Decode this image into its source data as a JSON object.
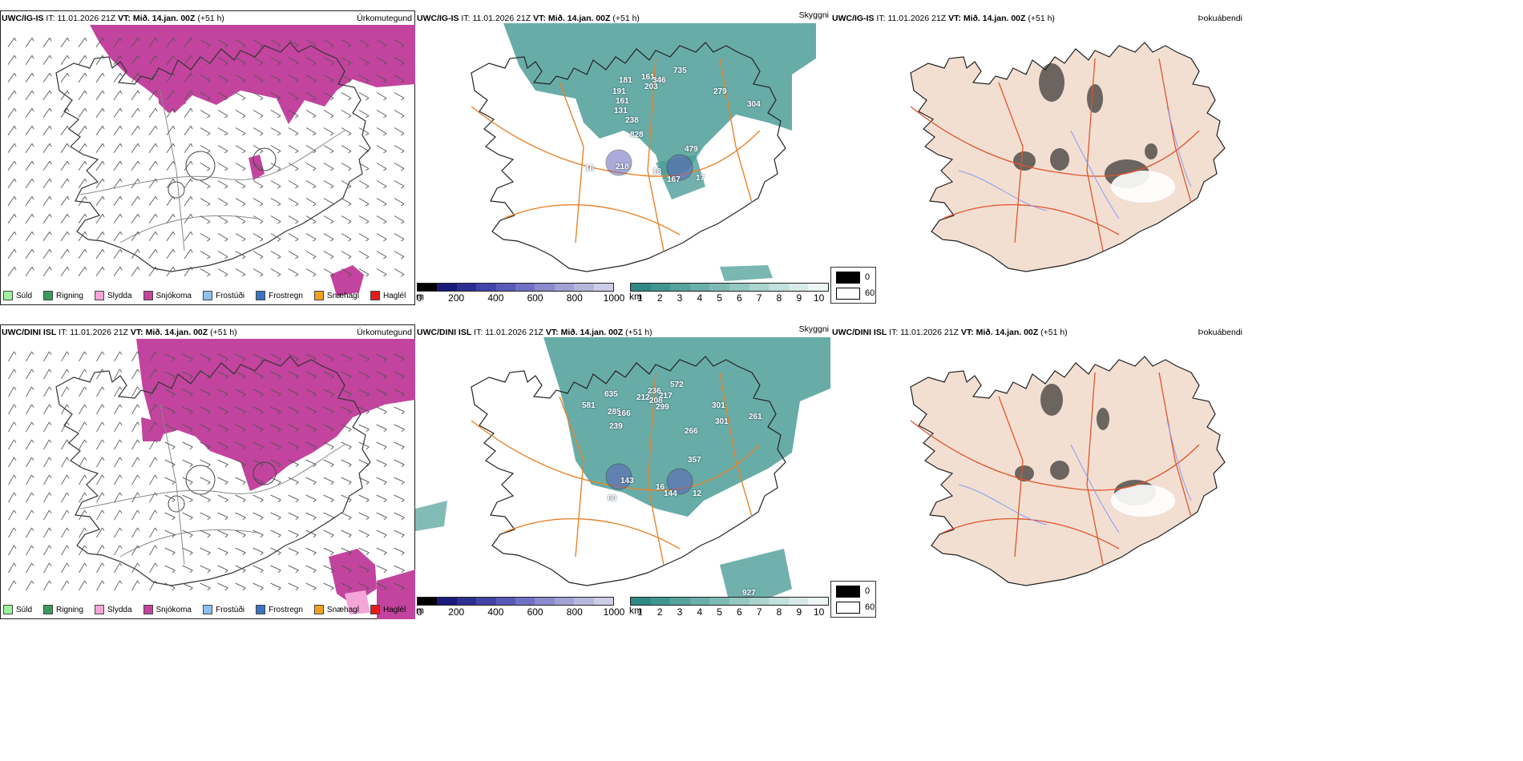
{
  "rows": [
    {
      "model": "UWC/IG-IS",
      "it_label": "IT:",
      "it_value": "11.01.2026 21Z",
      "vt_label": "VT:",
      "vt_value": "Mið. 14.jan. 00Z",
      "lead": "(+51 h)",
      "visibility_labels": [
        "735",
        "161",
        "181",
        "203",
        "346",
        "191",
        "161",
        "131",
        "238",
        "828",
        "279",
        "304",
        "479",
        "218",
        "167",
        "17",
        "16",
        "18"
      ]
    },
    {
      "model": "UWC/DINI ISL",
      "it_label": "IT:",
      "it_value": "11.01.2026 21Z",
      "vt_label": "VT:",
      "vt_value": "Mið. 14.jan. 00Z",
      "lead": "(+51 h)",
      "visibility_labels": [
        "572",
        "635",
        "212",
        "236",
        "581",
        "285",
        "208",
        "217",
        "299",
        "166",
        "239",
        "301",
        "301",
        "261",
        "266",
        "357",
        "143",
        "144",
        "16",
        "60",
        "12",
        "927"
      ]
    }
  ],
  "panel_titles": {
    "precip": "Úrkomutegund",
    "visibility": "Skyggni",
    "fog": "Þokuábendi"
  },
  "precip_legend": [
    {
      "label": "Súld",
      "color": "#9ef29e"
    },
    {
      "label": "Rigning",
      "color": "#3a9a5e"
    },
    {
      "label": "Slydda",
      "color": "#f4a6d8"
    },
    {
      "label": "Snjókoma",
      "color": "#c2449e"
    },
    {
      "label": "Frostúði",
      "color": "#8fc0ef"
    },
    {
      "label": "Frostregn",
      "color": "#3b73c0"
    },
    {
      "label": "Snæhagl",
      "color": "#f0a020"
    },
    {
      "label": "Haglél",
      "color": "#e81a1a"
    }
  ],
  "cloud_base_bar": {
    "unit": "m",
    "ticks": [
      "0",
      "200",
      "400",
      "600",
      "800",
      "1000"
    ],
    "colors": [
      "#000000",
      "#1a1a7a",
      "#2e2e92",
      "#4343a8",
      "#5a5ab8",
      "#7171c4",
      "#8a8acd",
      "#a1a1d6",
      "#b7b7de",
      "#cdcde8"
    ]
  },
  "visibility_bar": {
    "unit": "km",
    "ticks": [
      "1",
      "2",
      "3",
      "4",
      "5",
      "6",
      "7",
      "8",
      "9",
      "10"
    ],
    "colors": [
      "#2e8a86",
      "#3f9690",
      "#55a39c",
      "#6aafa8",
      "#7fbbb4",
      "#96c8c2",
      "#acd4cf",
      "#c2e0dc",
      "#d8ebe8",
      "#eef6f5"
    ]
  },
  "fog_legend": {
    "values": [
      "0",
      "60"
    ]
  },
  "colors": {
    "snow": "#c2449e",
    "sleet": "#f4a6d8",
    "vis": "#4e9e98",
    "road": "#e8832a",
    "land": "#f2dfd2",
    "fogroad": "#e0552a",
    "river": "#8a9cf0"
  }
}
